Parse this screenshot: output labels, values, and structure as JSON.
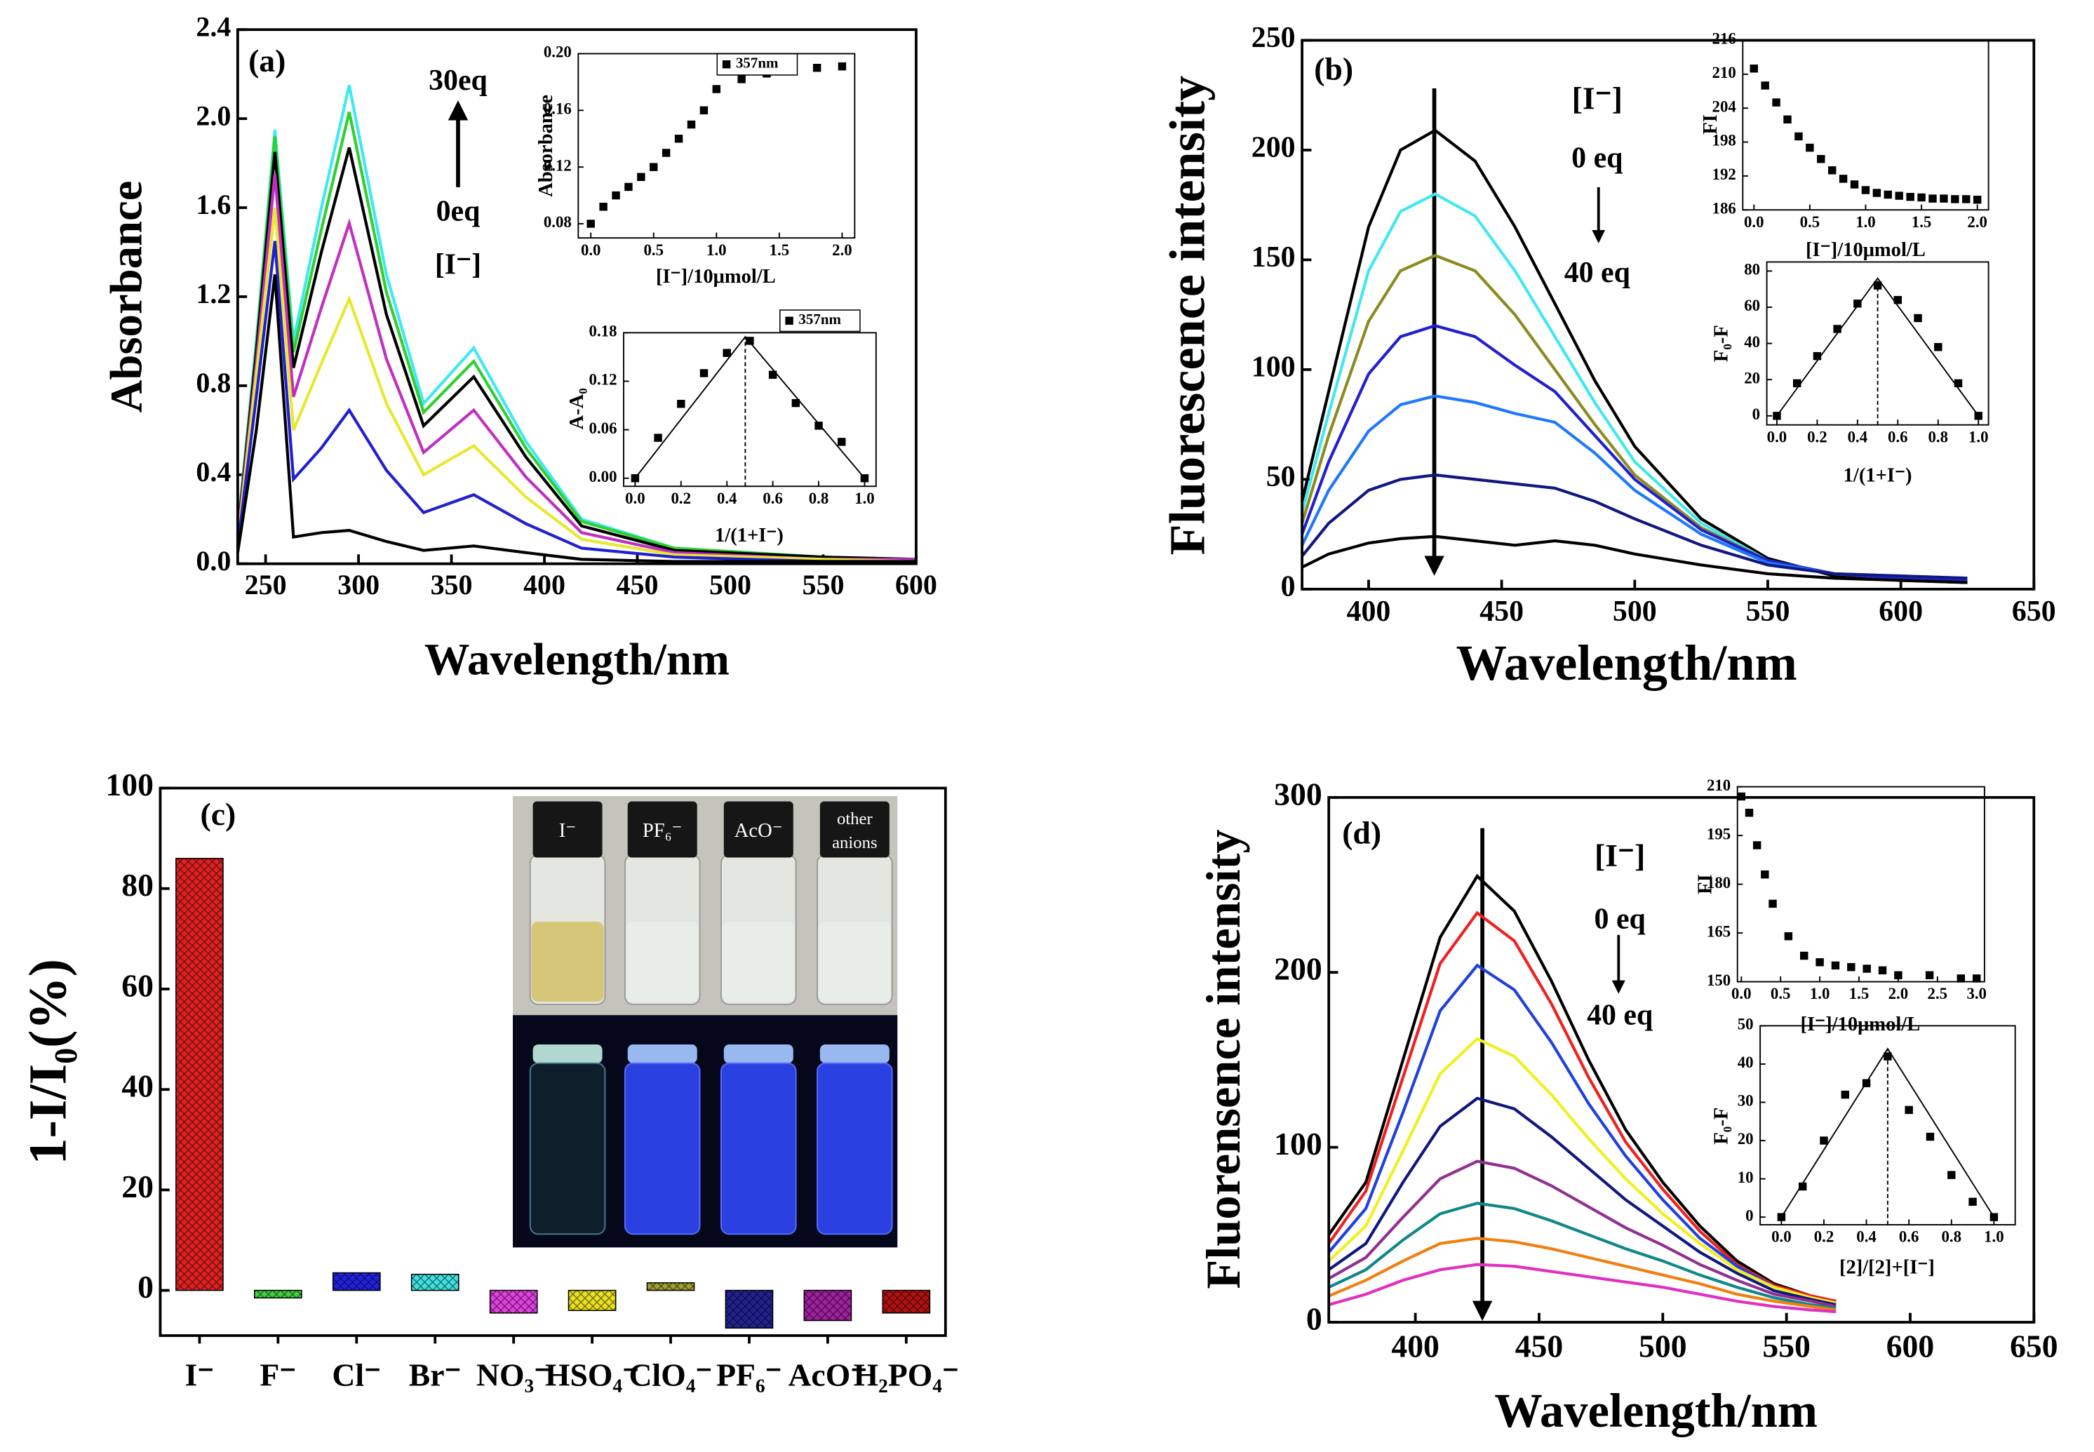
{
  "chart_data": [
    {
      "type": "line",
      "annotations": [
        "(a)",
        "30eq",
        "0eq",
        "[I⁻]"
      ],
      "xlabel": "Wavelength/nm",
      "ylabel": "Absorbance",
      "xlim": [
        235,
        600
      ],
      "xticks": [
        250,
        300,
        350,
        400,
        450,
        500,
        550,
        600
      ],
      "ylim": [
        0,
        2.4
      ],
      "yticks": [
        {
          "value": 0,
          "label": "0.0"
        },
        0.4,
        0.8,
        1.2,
        1.6,
        {
          "value": 2,
          "label": "2.0"
        },
        2.4
      ],
      "x": [
        235,
        245,
        255,
        265,
        280,
        295,
        315,
        335,
        362,
        390,
        420,
        470,
        550,
        600
      ],
      "series": [
        {
          "color": "#40e8f0",
          "values": [
            0.15,
            1.0,
            1.95,
            1.0,
            1.6,
            2.15,
            1.3,
            0.72,
            0.97,
            0.55,
            0.2,
            0.07,
            0.03,
            0.02
          ]
        },
        {
          "color": "#30d030",
          "values": [
            0.14,
            0.98,
            1.92,
            0.95,
            1.5,
            2.03,
            1.22,
            0.68,
            0.91,
            0.52,
            0.19,
            0.07,
            0.03,
            0.02
          ]
        },
        {
          "color": "#000000",
          "values": [
            0.13,
            0.95,
            1.85,
            0.88,
            1.4,
            1.87,
            1.12,
            0.62,
            0.84,
            0.48,
            0.17,
            0.06,
            0.03,
            0.02
          ]
        },
        {
          "color": "#c030c0",
          "values": [
            0.12,
            0.9,
            1.75,
            0.75,
            1.15,
            1.53,
            0.92,
            0.5,
            0.69,
            0.39,
            0.14,
            0.05,
            0.02,
            0.02
          ]
        },
        {
          "color": "#e8e830",
          "values": [
            0.1,
            0.85,
            1.6,
            0.6,
            0.9,
            1.19,
            0.72,
            0.4,
            0.53,
            0.3,
            0.11,
            0.04,
            0.02,
            0.01
          ]
        },
        {
          "color": "#2020d0",
          "values": [
            0.08,
            0.75,
            1.45,
            0.38,
            0.52,
            0.69,
            0.42,
            0.23,
            0.31,
            0.18,
            0.07,
            0.03,
            0.01,
            0.01
          ]
        },
        {
          "color": "#000000",
          "values": [
            0.05,
            0.6,
            1.3,
            0.12,
            0.14,
            0.15,
            0.1,
            0.06,
            0.08,
            0.05,
            0.02,
            0.01,
            0.01,
            0.01
          ]
        }
      ]
    },
    {
      "type": "scatter",
      "xlabel": "[I⁻]/10μmol/L",
      "ylabel": "Absorbance",
      "legend_label": "357nm",
      "xlim": [
        -0.1,
        2.1
      ],
      "xticks": [
        {
          "value": 0,
          "label": "0.0"
        },
        0.5,
        {
          "value": 1,
          "label": "1.0"
        },
        1.5,
        {
          "value": 2,
          "label": "2.0"
        }
      ],
      "ylim": [
        0.07,
        0.2
      ],
      "yticks": [
        0.08,
        0.12,
        0.16,
        {
          "value": 0.2,
          "label": "0.20"
        }
      ],
      "x": [
        0,
        0.1,
        0.2,
        0.3,
        0.4,
        0.5,
        0.6,
        0.7,
        0.8,
        0.9,
        1.0,
        1.2,
        1.4,
        1.6,
        1.8,
        2.0
      ],
      "values": [
        0.08,
        0.092,
        0.1,
        0.106,
        0.113,
        0.12,
        0.13,
        0.14,
        0.15,
        0.16,
        0.175,
        0.182,
        0.186,
        0.188,
        0.19,
        0.191
      ]
    },
    {
      "type": "scatter",
      "xlabel": "1/(1+I⁻)",
      "ylabel": "A-A₀",
      "legend_label": "357nm",
      "xlim": [
        -0.05,
        1.05
      ],
      "xticks": [
        {
          "value": 0,
          "label": "0.0"
        },
        0.2,
        0.4,
        0.6,
        0.8,
        {
          "value": 1,
          "label": "1.0"
        }
      ],
      "ylim": [
        -0.01,
        0.18
      ],
      "yticks": [
        {
          "value": 0,
          "label": "0.00"
        },
        0.06,
        0.12,
        0.18
      ],
      "x": [
        0,
        0.1,
        0.2,
        0.3,
        0.4,
        0.5,
        0.6,
        0.7,
        0.8,
        0.9,
        1.0
      ],
      "values": [
        0,
        0.05,
        0.092,
        0.13,
        0.155,
        0.17,
        0.128,
        0.093,
        0.065,
        0.045,
        0
      ],
      "fit": {
        "x": [
          0,
          0.48,
          1
        ],
        "values": [
          0,
          0.175,
          0
        ]
      },
      "vline": 0.48
    },
    {
      "type": "line",
      "annotations": [
        "(b)",
        "[I⁻]",
        "0 eq",
        "40 eq"
      ],
      "xlabel": "Wavelength/nm",
      "ylabel": "Fluorescence intensity",
      "xlim": [
        375,
        650
      ],
      "xticks": [
        400,
        450,
        500,
        550,
        600,
        650
      ],
      "ylim": [
        0,
        250
      ],
      "yticks": [
        0,
        50,
        100,
        150,
        200,
        250
      ],
      "x": [
        375,
        385,
        400,
        412,
        425,
        440,
        455,
        470,
        485,
        500,
        525,
        550,
        575,
        600,
        625
      ],
      "series": [
        {
          "color": "#000000",
          "values": [
            40,
            90,
            165,
            200,
            209,
            195,
            165,
            130,
            95,
            65,
            32,
            14,
            6,
            4,
            3
          ]
        },
        {
          "color": "#40e8f0",
          "values": [
            35,
            80,
            145,
            172,
            180,
            170,
            145,
            115,
            85,
            58,
            30,
            13,
            7,
            5,
            4
          ]
        },
        {
          "color": "#8b8b20",
          "values": [
            30,
            70,
            122,
            145,
            152,
            145,
            125,
            100,
            75,
            52,
            28,
            13,
            7,
            5,
            4
          ]
        },
        {
          "color": "#2020d0",
          "values": [
            25,
            58,
            98,
            115,
            120,
            115,
            102,
            90,
            70,
            50,
            27,
            13,
            7,
            5,
            4
          ]
        },
        {
          "color": "#1e78ff",
          "values": [
            20,
            45,
            72,
            84,
            88,
            85,
            80,
            76,
            62,
            45,
            25,
            12,
            7,
            6,
            5
          ]
        },
        {
          "color": "#101880",
          "values": [
            15,
            30,
            45,
            50,
            52,
            50,
            48,
            46,
            40,
            32,
            20,
            11,
            7,
            6,
            5
          ]
        },
        {
          "color": "#000000",
          "values": [
            10,
            16,
            21,
            23,
            24,
            22,
            20,
            22,
            20,
            16,
            11,
            7,
            5,
            4,
            3
          ]
        }
      ]
    },
    {
      "type": "scatter",
      "xlabel": "[I⁻]/10μmol/L",
      "ylabel": "FI",
      "xlim": [
        -0.1,
        2.1
      ],
      "xticks": [
        {
          "value": 0,
          "label": "0.0"
        },
        0.5,
        {
          "value": 1,
          "label": "1.0"
        },
        1.5,
        {
          "value": 2,
          "label": "2.0"
        }
      ],
      "ylim": [
        186,
        216
      ],
      "yticks": [
        186,
        192,
        198,
        204,
        210,
        216
      ],
      "x": [
        0,
        0.1,
        0.2,
        0.3,
        0.4,
        0.5,
        0.6,
        0.7,
        0.8,
        0.9,
        1.0,
        1.1,
        1.2,
        1.3,
        1.4,
        1.5,
        1.6,
        1.7,
        1.8,
        1.9,
        2.0
      ],
      "values": [
        211,
        208,
        205,
        202,
        199,
        197,
        195,
        193,
        191.5,
        190.5,
        189.5,
        189,
        188.7,
        188.5,
        188.3,
        188.2,
        188,
        188,
        187.9,
        187.9,
        187.8
      ]
    },
    {
      "type": "scatter",
      "xlabel": "1/(1+I⁻)",
      "ylabel": "F₀-F",
      "xlim": [
        -0.05,
        1.05
      ],
      "xticks": [
        {
          "value": 0,
          "label": "0.0"
        },
        0.2,
        0.4,
        0.6,
        0.8,
        {
          "value": 1,
          "label": "1.0"
        }
      ],
      "ylim": [
        -5,
        85
      ],
      "yticks": [
        0,
        20,
        40,
        60,
        80
      ],
      "x": [
        0,
        0.1,
        0.2,
        0.3,
        0.4,
        0.5,
        0.6,
        0.7,
        0.8,
        0.9,
        1.0
      ],
      "values": [
        0,
        18,
        33,
        48,
        62,
        72,
        64,
        54,
        38,
        18,
        0
      ],
      "fit": {
        "x": [
          0,
          0.5,
          1
        ],
        "values": [
          0,
          76,
          0
        ]
      },
      "vline": 0.5
    },
    {
      "type": "bar",
      "annotations": [
        "(c)"
      ],
      "ylabel": "1-I/I₀(%)",
      "categories": [
        "I⁻",
        "F⁻",
        "Cl⁻",
        "Br⁻",
        "NO₃⁻",
        "HSO₄⁻",
        "ClO₄⁻",
        "PF₆⁻",
        "AcO⁻",
        "H₂PO₄⁻"
      ],
      "values": [
        86,
        -1.5,
        3.5,
        3.2,
        -4.5,
        -4,
        1.5,
        -7.5,
        -6,
        -4.5
      ],
      "colors": [
        "#e02020",
        "#40d040",
        "#2020e0",
        "#40e0e0",
        "#e040e0",
        "#e8e020",
        "#a0a030",
        "#202090",
        "#a020a0",
        "#b01010"
      ],
      "ylim": [
        -9,
        100
      ],
      "yticks": [
        0,
        20,
        40,
        60,
        80,
        100
      ],
      "photo_labels": [
        "I⁻",
        "PF₆⁻",
        "AcO⁻",
        "other",
        "anions"
      ]
    },
    {
      "type": "line",
      "annotations": [
        "(d)",
        "[I⁻]",
        "0 eq",
        "40 eq"
      ],
      "xlabel": "Wavelength/nm",
      "ylabel": "Fluorensence intensity",
      "xlim": [
        365,
        650
      ],
      "xticks": [
        400,
        450,
        500,
        550,
        600,
        650
      ],
      "ylim": [
        0,
        300
      ],
      "yticks": [
        0,
        100,
        200,
        300
      ],
      "x": [
        365,
        380,
        395,
        410,
        425,
        440,
        455,
        470,
        485,
        500,
        515,
        530,
        545,
        560,
        570
      ],
      "series": [
        {
          "color": "#000000",
          "values": [
            50,
            80,
            150,
            220,
            255,
            235,
            195,
            150,
            110,
            80,
            55,
            35,
            22,
            15,
            12
          ]
        },
        {
          "color": "#f02020",
          "values": [
            45,
            75,
            140,
            205,
            234,
            218,
            182,
            140,
            103,
            76,
            52,
            33,
            21,
            15,
            12
          ]
        },
        {
          "color": "#2040e0",
          "values": [
            40,
            65,
            120,
            178,
            204,
            190,
            160,
            125,
            95,
            70,
            48,
            32,
            20,
            14,
            11
          ]
        },
        {
          "color": "#f0f020",
          "values": [
            35,
            55,
            98,
            142,
            162,
            152,
            130,
            105,
            82,
            62,
            45,
            30,
            20,
            14,
            11
          ]
        },
        {
          "color": "#101880",
          "values": [
            30,
            45,
            80,
            112,
            128,
            122,
            106,
            88,
            70,
            55,
            40,
            28,
            18,
            13,
            10
          ]
        },
        {
          "color": "#903090",
          "values": [
            25,
            37,
            60,
            82,
            92,
            88,
            78,
            66,
            54,
            44,
            33,
            24,
            16,
            12,
            9
          ]
        },
        {
          "color": "#108888",
          "values": [
            20,
            30,
            47,
            62,
            68,
            65,
            58,
            50,
            42,
            35,
            27,
            20,
            14,
            10,
            8
          ]
        },
        {
          "color": "#f08010",
          "values": [
            15,
            24,
            35,
            45,
            48,
            46,
            42,
            37,
            32,
            27,
            22,
            16,
            12,
            9,
            7
          ]
        },
        {
          "color": "#e030c0",
          "values": [
            10,
            16,
            24,
            30,
            33,
            32,
            29,
            26,
            23,
            20,
            16,
            12,
            9,
            7,
            6
          ]
        }
      ]
    },
    {
      "type": "scatter",
      "xlabel": "[I⁻]/10μmol/L",
      "ylabel": "FI",
      "xlim": [
        -0.05,
        3.1
      ],
      "xticks": [
        {
          "value": 0,
          "label": "0.0"
        },
        0.5,
        {
          "value": 1,
          "label": "1.0"
        },
        1.5,
        {
          "value": 2,
          "label": "2.0"
        },
        2.5,
        {
          "value": 3,
          "label": "3.0"
        }
      ],
      "ylim": [
        150,
        210
      ],
      "yticks": [
        150,
        165,
        180,
        195,
        210
      ],
      "x": [
        0,
        0.1,
        0.2,
        0.3,
        0.4,
        0.6,
        0.8,
        1.0,
        1.2,
        1.4,
        1.6,
        1.8,
        2.0,
        2.4,
        2.8,
        3.0
      ],
      "values": [
        207,
        202,
        192,
        183,
        174,
        164,
        158,
        156,
        155,
        154.5,
        154,
        153.5,
        152,
        152,
        151,
        151
      ]
    },
    {
      "type": "scatter",
      "xlabel": "[2]/[2]+[I⁻]",
      "ylabel": "F₀-F",
      "xlim": [
        -0.1,
        1.1
      ],
      "xticks": [
        {
          "value": 0,
          "label": "0.0"
        },
        0.2,
        0.4,
        0.6,
        0.8,
        {
          "value": 1,
          "label": "1.0"
        }
      ],
      "ylim": [
        -2,
        50
      ],
      "yticks": [
        0,
        10,
        20,
        30,
        40,
        50
      ],
      "x": [
        0,
        0.1,
        0.2,
        0.3,
        0.4,
        0.5,
        0.6,
        0.7,
        0.8,
        0.9,
        1.0
      ],
      "values": [
        0,
        8,
        20,
        32,
        35,
        42,
        28,
        21,
        11,
        4,
        0
      ],
      "fit": {
        "x": [
          0,
          0.5,
          1
        ],
        "values": [
          0,
          44,
          0
        ]
      },
      "vline": 0.5
    }
  ]
}
